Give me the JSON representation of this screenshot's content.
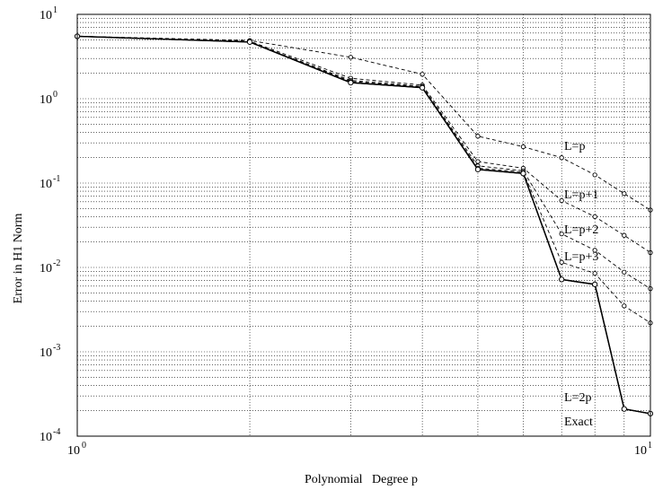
{
  "chart_data": {
    "type": "line",
    "title": "",
    "xlabel": "Polynomial   Degree p",
    "ylabel": "Error  in  H1  Norm",
    "x_scale": "log",
    "y_scale": "log",
    "xlim": [
      1,
      10
    ],
    "ylim": [
      0.0001,
      10
    ],
    "grid": true,
    "x_ticks": [
      {
        "base": "10",
        "exp": "0",
        "value": 1
      },
      {
        "base": "10",
        "exp": "1",
        "value": 10
      }
    ],
    "y_ticks": [
      {
        "base": "10",
        "exp": "1",
        "value": 10
      },
      {
        "base": "10",
        "exp": "0",
        "value": 1
      },
      {
        "base": "10",
        "exp": "-1",
        "value": 0.1
      },
      {
        "base": "10",
        "exp": "-2",
        "value": 0.01
      },
      {
        "base": "10",
        "exp": "-3",
        "value": 0.001
      },
      {
        "base": "10",
        "exp": "-4",
        "value": 0.0001
      }
    ],
    "series": [
      {
        "name": "L=p",
        "style": "dashed",
        "x": [
          1,
          2,
          3,
          4,
          5,
          6,
          7,
          8,
          9,
          10
        ],
        "y": [
          5.5,
          4.9,
          3.1,
          1.95,
          0.36,
          0.27,
          0.2,
          0.125,
          0.075,
          0.048
        ]
      },
      {
        "name": "L=p+1",
        "style": "dashed",
        "x": [
          1,
          2,
          3,
          4,
          5,
          6,
          7,
          8,
          9,
          10
        ],
        "y": [
          5.5,
          4.8,
          1.75,
          1.45,
          0.18,
          0.15,
          0.062,
          0.04,
          0.024,
          0.015
        ]
      },
      {
        "name": "L=p+2",
        "style": "dashed",
        "x": [
          1,
          2,
          3,
          4,
          5,
          6,
          7,
          8,
          9,
          10
        ],
        "y": [
          5.5,
          4.7,
          1.65,
          1.4,
          0.16,
          0.14,
          0.025,
          0.016,
          0.0088,
          0.0056
        ]
      },
      {
        "name": "L=p+3",
        "style": "dashed",
        "x": [
          1,
          2,
          3,
          4,
          5,
          6,
          7,
          8,
          9,
          10
        ],
        "y": [
          5.5,
          4.7,
          1.6,
          1.38,
          0.15,
          0.135,
          0.0115,
          0.0085,
          0.0035,
          0.0022
        ]
      },
      {
        "name": "L=2p",
        "style": "solid",
        "x": [
          1,
          2,
          3,
          4,
          5,
          6,
          7,
          8,
          9,
          10
        ],
        "y": [
          5.5,
          4.7,
          1.55,
          1.35,
          0.145,
          0.13,
          0.0072,
          0.0063,
          0.00021,
          0.000185
        ]
      },
      {
        "name": "Exact",
        "style": "solid",
        "x": [
          1,
          2,
          3,
          4,
          5,
          6,
          7,
          8,
          9,
          10
        ],
        "y": [
          5.5,
          4.7,
          1.55,
          1.35,
          0.145,
          0.13,
          0.0072,
          0.0063,
          0.00021,
          0.000185
        ]
      }
    ],
    "annotations": [
      "L=p",
      "L=p+1",
      "L=p+2",
      "L=p+3",
      "L=2p",
      "Exact"
    ]
  }
}
